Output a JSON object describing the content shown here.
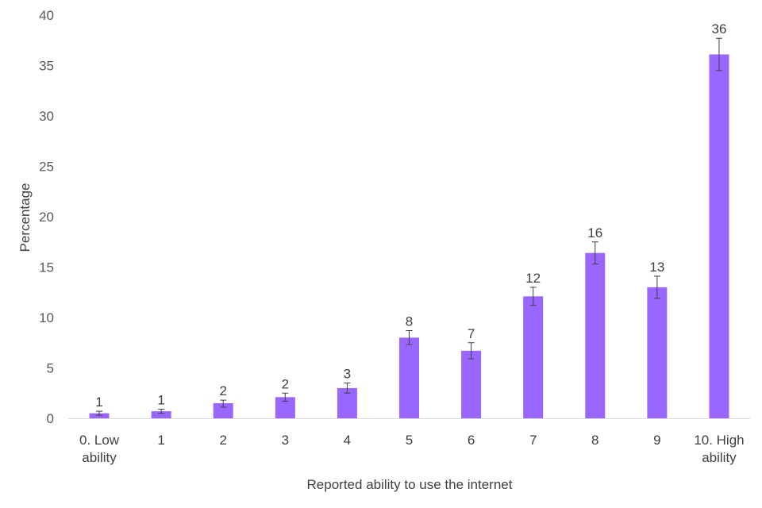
{
  "chart_data": {
    "type": "bar",
    "title": "",
    "xlabel": "Reported ability to use the internet",
    "ylabel": "Percentage",
    "ylim": [
      0,
      40
    ],
    "yticks": [
      0,
      5,
      10,
      15,
      20,
      25,
      30,
      35,
      40
    ],
    "grid": false,
    "categories": [
      "0. Low ability",
      "1",
      "2",
      "3",
      "4",
      "5",
      "6",
      "7",
      "8",
      "9",
      "10. High ability"
    ],
    "category_lines": [
      [
        "0. Low",
        "ability"
      ],
      [
        "1"
      ],
      [
        "2"
      ],
      [
        "3"
      ],
      [
        "4"
      ],
      [
        "5"
      ],
      [
        "6"
      ],
      [
        "7"
      ],
      [
        "8"
      ],
      [
        "9"
      ],
      [
        "10. High",
        "ability"
      ]
    ],
    "values": [
      0.5,
      0.7,
      1.5,
      2.1,
      3.0,
      8.0,
      6.7,
      12.1,
      16.4,
      13.0,
      36.1
    ],
    "error_low": [
      0.3,
      0.5,
      1.1,
      1.7,
      2.5,
      7.3,
      5.9,
      11.2,
      15.3,
      11.9,
      34.5
    ],
    "error_high": [
      0.7,
      0.9,
      1.8,
      2.5,
      3.5,
      8.7,
      7.5,
      13.0,
      17.5,
      14.1,
      37.7
    ],
    "data_labels": [
      "1",
      "1",
      "2",
      "2",
      "3",
      "8",
      "7",
      "12",
      "16",
      "13",
      "36"
    ],
    "colors": {
      "bar": "#9966ff",
      "axis": "#d9d9d9",
      "error_bar": "#404040"
    }
  }
}
